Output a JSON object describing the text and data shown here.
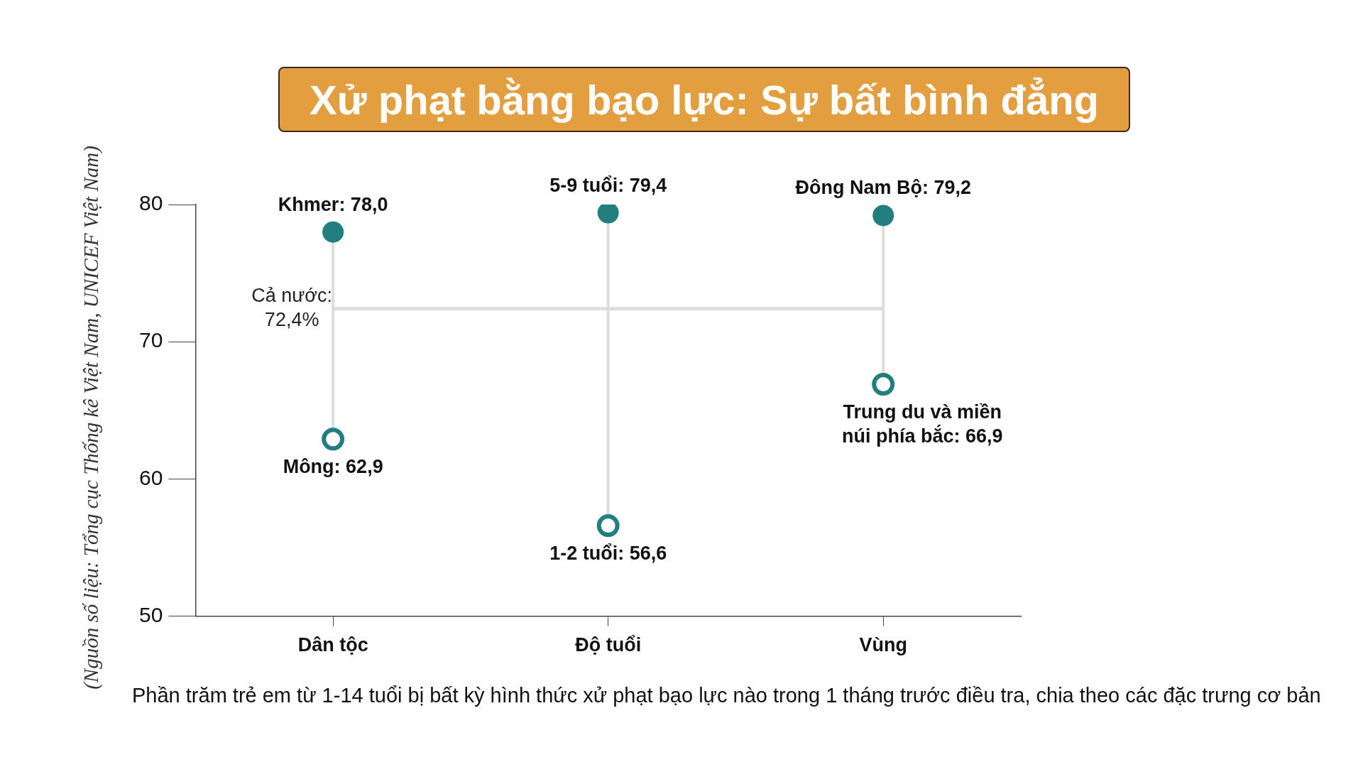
{
  "chart_data": {
    "type": "scatter",
    "title": "Xử phạt bằng bạo lực: Sự bất bình đẳng",
    "categories": [
      "Dân tộc",
      "Độ tuổi",
      "Vùng"
    ],
    "series": [
      {
        "color": "#237f7f",
        "values": [
          78.0,
          79.4,
          79.2
        ],
        "value_labels": [
          "Khmer: 78,0",
          "5-9 tuổi: 79,4",
          "Đông Nam Bộ: 79,2"
        ]
      },
      {
        "color": "#237f7f",
        "values": [
          62.9,
          56.6,
          66.9
        ],
        "value_labels": [
          "Mông: 62,9",
          "1-2 tuổi: 56,6",
          "Trung du và miền núi phía bắc: 66,9"
        ]
      }
    ],
    "ylim": [
      50,
      80
    ],
    "yticks": [
      50,
      60,
      70,
      80
    ],
    "legend": false,
    "marker": "circle",
    "ref_lines": [
      {
        "axis": "y",
        "value": 72.4,
        "label": "Cả nước: 72,4%",
        "color": "#dddddd"
      }
    ],
    "annotations": [
      "Phần trăm trẻ em từ 1-14 tuổi bị bất kỳ hình thức xử phạt bạo lực nào trong 1 tháng trước điều tra, chia theo các đặc trưng cơ bản",
      "(Nguồn số liệu: Tổng cục Thống kê Việt Nam, UNICEF Việt Nam)"
    ]
  }
}
